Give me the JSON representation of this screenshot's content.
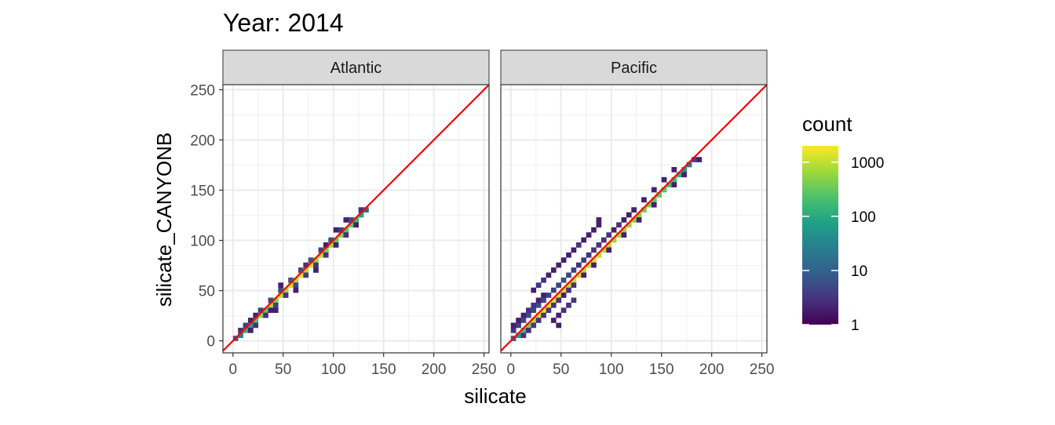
{
  "chart_data": {
    "type": "heatmap",
    "title": "Year: 2014",
    "xlabel": "silicate",
    "ylabel": "silicate_CANYONB",
    "xlim": [
      -10,
      255
    ],
    "ylim": [
      -12,
      255
    ],
    "xticks": [
      0,
      50,
      100,
      150,
      200,
      250
    ],
    "yticks": [
      0,
      50,
      100,
      150,
      200,
      250
    ],
    "x_tick_labels": [
      "0",
      "50",
      "100",
      "150",
      "200",
      "250"
    ],
    "y_tick_labels": [
      "0",
      "50",
      "100",
      "150",
      "200",
      "250"
    ],
    "grid": true,
    "bin_width": 5,
    "reference_line": {
      "slope": 1,
      "intercept": 0,
      "color": "#ff0000"
    },
    "legend": {
      "title": "count",
      "position": "right",
      "scale": "log",
      "range": [
        1,
        2000
      ],
      "ticks": [
        1,
        10,
        100,
        1000
      ],
      "tick_labels": [
        "1",
        "10",
        "100",
        "1000"
      ],
      "colormap": [
        "#440154",
        "#46327e",
        "#365c8d",
        "#277f8e",
        "#1fa187",
        "#4ac16d",
        "#a0da39",
        "#fde725"
      ]
    },
    "panels": [
      {
        "name": "Atlantic",
        "bins": [
          [
            0,
            0,
            8
          ],
          [
            5,
            3,
            30
          ],
          [
            5,
            8,
            3
          ],
          [
            10,
            8,
            120
          ],
          [
            10,
            13,
            4
          ],
          [
            15,
            13,
            80
          ],
          [
            15,
            8,
            2
          ],
          [
            20,
            18,
            200
          ],
          [
            20,
            13,
            3
          ],
          [
            25,
            23,
            500
          ],
          [
            25,
            28,
            4
          ],
          [
            30,
            28,
            300
          ],
          [
            30,
            23,
            3
          ],
          [
            35,
            33,
            700
          ],
          [
            35,
            38,
            5
          ],
          [
            40,
            38,
            400
          ],
          [
            40,
            33,
            4
          ],
          [
            45,
            43,
            900
          ],
          [
            45,
            48,
            6
          ],
          [
            50,
            48,
            600
          ],
          [
            50,
            43,
            3
          ],
          [
            55,
            53,
            1200
          ],
          [
            55,
            58,
            8
          ],
          [
            60,
            58,
            700
          ],
          [
            60,
            53,
            5
          ],
          [
            65,
            63,
            1500
          ],
          [
            65,
            68,
            6
          ],
          [
            70,
            68,
            800
          ],
          [
            70,
            63,
            4
          ],
          [
            75,
            73,
            1200
          ],
          [
            75,
            78,
            7
          ],
          [
            80,
            78,
            600
          ],
          [
            80,
            73,
            3
          ],
          [
            85,
            83,
            900
          ],
          [
            85,
            88,
            5
          ],
          [
            90,
            88,
            400
          ],
          [
            90,
            83,
            3
          ],
          [
            95,
            93,
            700
          ],
          [
            95,
            98,
            6
          ],
          [
            100,
            98,
            300
          ],
          [
            100,
            93,
            2
          ],
          [
            105,
            103,
            500
          ],
          [
            105,
            108,
            4
          ],
          [
            110,
            108,
            250
          ],
          [
            110,
            103,
            3
          ],
          [
            115,
            113,
            300
          ],
          [
            115,
            118,
            5
          ],
          [
            120,
            118,
            150
          ],
          [
            120,
            113,
            2
          ],
          [
            125,
            123,
            80
          ],
          [
            125,
            128,
            3
          ],
          [
            130,
            128,
            15
          ],
          [
            40,
            28,
            2
          ],
          [
            45,
            53,
            2
          ],
          [
            60,
            48,
            2
          ],
          [
            70,
            73,
            3
          ],
          [
            80,
            68,
            2
          ],
          [
            90,
            93,
            2
          ],
          [
            35,
            28,
            2
          ],
          [
            20,
            23,
            2
          ],
          [
            100,
            108,
            2
          ],
          [
            110,
            118,
            2
          ],
          [
            15,
            18,
            2
          ]
        ]
      },
      {
        "name": "Pacific",
        "bins": [
          [
            0,
            0,
            10
          ],
          [
            5,
            3,
            60
          ],
          [
            10,
            8,
            200
          ],
          [
            15,
            13,
            400
          ],
          [
            20,
            18,
            800
          ],
          [
            25,
            23,
            1200
          ],
          [
            30,
            28,
            1800
          ],
          [
            35,
            33,
            1500
          ],
          [
            40,
            38,
            1400
          ],
          [
            45,
            43,
            1300
          ],
          [
            50,
            48,
            1200
          ],
          [
            55,
            53,
            1100
          ],
          [
            60,
            58,
            1000
          ],
          [
            65,
            63,
            1000
          ],
          [
            70,
            68,
            900
          ],
          [
            75,
            73,
            900
          ],
          [
            80,
            78,
            1300
          ],
          [
            85,
            83,
            900
          ],
          [
            90,
            88,
            800
          ],
          [
            95,
            93,
            900
          ],
          [
            100,
            98,
            700
          ],
          [
            105,
            103,
            700
          ],
          [
            110,
            108,
            600
          ],
          [
            115,
            113,
            600
          ],
          [
            120,
            118,
            500
          ],
          [
            125,
            123,
            500
          ],
          [
            130,
            128,
            400
          ],
          [
            135,
            133,
            400
          ],
          [
            140,
            138,
            300
          ],
          [
            145,
            143,
            300
          ],
          [
            150,
            148,
            250
          ],
          [
            155,
            153,
            200
          ],
          [
            160,
            158,
            180
          ],
          [
            165,
            163,
            120
          ],
          [
            170,
            168,
            60
          ],
          [
            175,
            173,
            20
          ],
          [
            180,
            178,
            5
          ],
          [
            185,
            178,
            2
          ],
          [
            0,
            8,
            3
          ],
          [
            5,
            13,
            4
          ],
          [
            10,
            18,
            5
          ],
          [
            15,
            23,
            6
          ],
          [
            20,
            28,
            5
          ],
          [
            25,
            33,
            6
          ],
          [
            30,
            38,
            5
          ],
          [
            35,
            43,
            4
          ],
          [
            40,
            48,
            4
          ],
          [
            45,
            53,
            5
          ],
          [
            50,
            58,
            6
          ],
          [
            55,
            63,
            5
          ],
          [
            60,
            68,
            4
          ],
          [
            65,
            73,
            3
          ],
          [
            70,
            78,
            4
          ],
          [
            75,
            83,
            3
          ],
          [
            80,
            88,
            3
          ],
          [
            85,
            93,
            3
          ],
          [
            90,
            98,
            3
          ],
          [
            95,
            103,
            3
          ],
          [
            100,
            108,
            2
          ],
          [
            105,
            113,
            3
          ],
          [
            110,
            118,
            2
          ],
          [
            115,
            123,
            2
          ],
          [
            120,
            128,
            2
          ],
          [
            130,
            138,
            2
          ],
          [
            140,
            148,
            2
          ],
          [
            150,
            158,
            2
          ],
          [
            160,
            168,
            2
          ],
          [
            0,
            13,
            2
          ],
          [
            5,
            18,
            2
          ],
          [
            10,
            23,
            2
          ],
          [
            15,
            28,
            3
          ],
          [
            20,
            33,
            3
          ],
          [
            25,
            38,
            2
          ],
          [
            30,
            43,
            2
          ],
          [
            20,
            48,
            2
          ],
          [
            25,
            53,
            3
          ],
          [
            30,
            58,
            3
          ],
          [
            35,
            63,
            2
          ],
          [
            40,
            68,
            2
          ],
          [
            45,
            73,
            2
          ],
          [
            50,
            78,
            2
          ],
          [
            55,
            83,
            2
          ],
          [
            60,
            88,
            2
          ],
          [
            65,
            93,
            3
          ],
          [
            70,
            98,
            2
          ],
          [
            75,
            103,
            2
          ],
          [
            80,
            108,
            2
          ],
          [
            85,
            113,
            2
          ],
          [
            85,
            118,
            2
          ],
          [
            10,
            3,
            3
          ],
          [
            15,
            8,
            3
          ],
          [
            20,
            13,
            4
          ],
          [
            25,
            18,
            3
          ],
          [
            30,
            23,
            3
          ],
          [
            35,
            28,
            4
          ],
          [
            40,
            33,
            3
          ],
          [
            45,
            38,
            3
          ],
          [
            50,
            43,
            2
          ],
          [
            40,
            18,
            2
          ],
          [
            45,
            23,
            2
          ],
          [
            50,
            28,
            3
          ],
          [
            55,
            33,
            3
          ],
          [
            60,
            38,
            3
          ],
          [
            45,
            13,
            2
          ],
          [
            55,
            48,
            3
          ],
          [
            60,
            53,
            3
          ],
          [
            70,
            63,
            2
          ],
          [
            80,
            73,
            2
          ],
          [
            95,
            88,
            2
          ],
          [
            110,
            103,
            2
          ],
          [
            125,
            118,
            2
          ],
          [
            140,
            133,
            2
          ],
          [
            160,
            153,
            2
          ],
          [
            170,
            163,
            2
          ]
        ]
      }
    ]
  }
}
